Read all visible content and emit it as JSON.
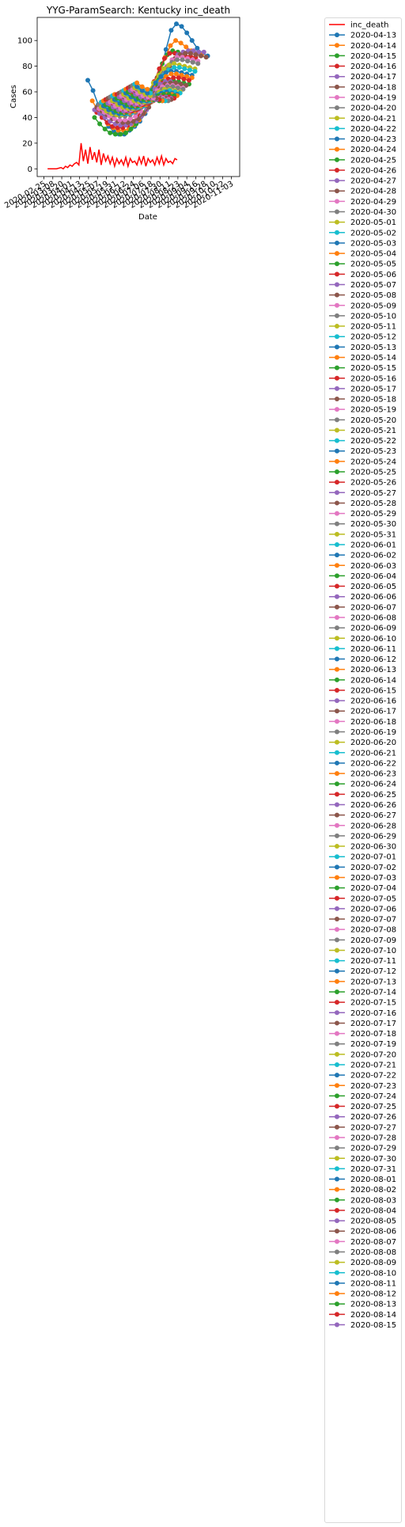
{
  "chart_data": {
    "type": "line",
    "title": "YYG-ParamSearch: Kentucky inc_death",
    "xlabel": "Date",
    "ylabel": "Cases",
    "ylim": [
      -6,
      118
    ],
    "yticks": [
      0,
      20,
      40,
      60,
      80,
      100
    ],
    "xticks": [
      "2020-02-25",
      "2020-03-08",
      "2020-03-20",
      "2020-04-01",
      "2020-04-13",
      "2020-04-25",
      "2020-05-07",
      "2020-05-19",
      "2020-05-31",
      "2020-06-12",
      "2020-06-24",
      "2020-07-06",
      "2020-07-18",
      "2020-07-30",
      "2020-08-11",
      "2020-08-23",
      "2020-09-04",
      "2020-09-16",
      "2020-09-28",
      "2020-10-10",
      "2020-10-22",
      "2020-11-03"
    ],
    "xlim": [
      "2020-02-16",
      "2020-11-14"
    ],
    "grid": false,
    "legend_position": "outside-right",
    "observed": {
      "name": "inc_death",
      "color": "#ff0000",
      "dates": [
        "2020-03-01",
        "2020-03-07",
        "2020-03-13",
        "2020-03-19",
        "2020-03-22",
        "2020-03-25",
        "2020-03-28",
        "2020-03-31",
        "2020-04-03",
        "2020-04-06",
        "2020-04-09",
        "2020-04-12",
        "2020-04-15",
        "2020-04-18",
        "2020-04-21",
        "2020-04-24",
        "2020-04-27",
        "2020-04-30",
        "2020-05-03",
        "2020-05-06",
        "2020-05-09",
        "2020-05-12",
        "2020-05-15",
        "2020-05-18",
        "2020-05-21",
        "2020-05-24",
        "2020-05-27",
        "2020-05-30",
        "2020-06-02",
        "2020-06-05",
        "2020-06-08",
        "2020-06-11",
        "2020-06-14",
        "2020-06-17",
        "2020-06-20",
        "2020-06-23",
        "2020-06-26",
        "2020-06-29",
        "2020-07-02",
        "2020-07-05",
        "2020-07-08",
        "2020-07-11",
        "2020-07-14",
        "2020-07-17",
        "2020-07-20",
        "2020-07-23",
        "2020-07-26",
        "2020-07-29",
        "2020-08-01",
        "2020-08-04",
        "2020-08-07",
        "2020-08-10",
        "2020-08-13",
        "2020-08-16",
        "2020-08-19",
        "2020-08-22"
      ],
      "values": [
        0,
        0,
        0,
        1,
        0,
        2,
        1,
        3,
        2,
        4,
        5,
        3,
        20,
        6,
        15,
        4,
        17,
        7,
        13,
        5,
        15,
        3,
        12,
        6,
        10,
        4,
        9,
        2,
        8,
        4,
        7,
        3,
        9,
        2,
        8,
        5,
        6,
        3,
        9,
        4,
        10,
        2,
        8,
        5,
        7,
        3,
        9,
        4,
        10,
        3,
        8,
        5,
        6,
        4,
        8,
        7
      ]
    },
    "series_colors": [
      "#1f77b4",
      "#ff7f0e",
      "#2ca02c",
      "#d62728",
      "#9467bd",
      "#8c564b",
      "#e377c2",
      "#7f7f7f",
      "#bcbd22",
      "#17becf"
    ],
    "series": [
      {
        "name": "2020-04-13",
        "start": "2020-04-24",
        "values": [
          69,
          61,
          50,
          41,
          33,
          29,
          27,
          27,
          30,
          33,
          37,
          43,
          52,
          62,
          76,
          93,
          108,
          113,
          111,
          106,
          100,
          94,
          90,
          88
        ]
      },
      {
        "name": "2020-04-14",
        "start": "2020-04-30",
        "values": [
          53,
          46,
          40,
          35,
          32,
          30,
          30,
          31,
          34,
          38,
          44,
          52,
          62,
          74,
          87,
          96,
          100,
          98,
          95,
          92,
          90,
          89
        ]
      },
      {
        "name": "2020-04-15",
        "start": "2020-05-03",
        "values": [
          40,
          35,
          31,
          28,
          27,
          27,
          28,
          31,
          35,
          41,
          49,
          59,
          71,
          82,
          89,
          92,
          91,
          88,
          86,
          85
        ]
      },
      {
        "name": "2020-04-16",
        "start": "2020-05-06",
        "values": [
          44,
          40,
          36,
          33,
          32,
          32,
          34,
          37,
          42,
          49,
          58,
          68,
          78,
          86,
          90,
          90,
          89,
          88,
          88,
          87
        ]
      },
      {
        "name": "2020-04-17",
        "start": "2020-05-03",
        "values": [
          46,
          43,
          40,
          37,
          35,
          34,
          34,
          35,
          37,
          41,
          46,
          53,
          61,
          70,
          78,
          85,
          89,
          91,
          92,
          92,
          91,
          91
        ]
      },
      {
        "name": "2020-04-18",
        "start": "2020-05-06",
        "values": [
          48,
          45,
          42,
          39,
          37,
          36,
          36,
          37,
          39,
          43,
          48,
          55,
          63,
          72,
          80,
          86,
          89,
          90,
          90,
          89,
          88,
          87
        ]
      },
      {
        "name": "2020-04-19",
        "start": "2020-05-09",
        "values": [
          47,
          44,
          41,
          39,
          38,
          38,
          39,
          41,
          45,
          50,
          57,
          65,
          73,
          80,
          85,
          87,
          87,
          86,
          85,
          84
        ]
      },
      {
        "name": "2020-04-20",
        "start": "2020-05-09",
        "values": [
          50,
          47,
          44,
          42,
          41,
          41,
          42,
          44,
          48,
          53,
          59,
          66,
          73,
          79,
          83,
          85,
          85,
          84,
          83,
          82
        ]
      },
      {
        "name": "2020-04-21",
        "start": "2020-05-12",
        "values": [
          48,
          45,
          43,
          42,
          42,
          43,
          45,
          49,
          54,
          60,
          67,
          73,
          78,
          81,
          82,
          81,
          80,
          79,
          78
        ]
      },
      {
        "name": "2020-04-22",
        "start": "2020-05-12",
        "values": [
          52,
          49,
          46,
          44,
          43,
          43,
          44,
          47,
          51,
          56,
          62,
          68,
          73,
          77,
          79,
          79,
          78,
          77,
          76
        ]
      },
      {
        "name": "2020-04-23",
        "start": "2020-05-15",
        "values": [
          49,
          46,
          44,
          43,
          43,
          44,
          46,
          50,
          55,
          61,
          67,
          72,
          75,
          76,
          76,
          75,
          74,
          73
        ]
      },
      {
        "name": "2020-04-24",
        "start": "2020-05-15",
        "values": [
          53,
          50,
          47,
          45,
          44,
          44,
          45,
          48,
          52,
          57,
          63,
          68,
          72,
          74,
          74,
          73,
          72,
          71
        ]
      },
      {
        "name": "2020-04-25",
        "start": "2020-05-18",
        "values": [
          50,
          47,
          45,
          44,
          44,
          45,
          47,
          51,
          56,
          61,
          65,
          68,
          69,
          69,
          68,
          67,
          66
        ]
      },
      {
        "name": "2020-04-26",
        "start": "2020-05-18",
        "values": [
          54,
          51,
          48,
          46,
          45,
          45,
          46,
          49,
          53,
          58,
          63,
          67,
          70,
          71,
          71,
          70,
          69
        ]
      },
      {
        "name": "2020-04-27",
        "start": "2020-05-21",
        "values": [
          51,
          48,
          46,
          45,
          45,
          46,
          48,
          52,
          57,
          62,
          66,
          68,
          68,
          67,
          66,
          65
        ]
      },
      {
        "name": "2020-04-28",
        "start": "2020-05-21",
        "values": [
          55,
          52,
          49,
          47,
          46,
          46,
          47,
          50,
          54,
          59,
          63,
          66,
          67,
          67,
          66,
          65
        ]
      },
      {
        "name": "2020-04-29",
        "start": "2020-05-24",
        "values": [
          52,
          49,
          47,
          46,
          46,
          47,
          49,
          53,
          57,
          61,
          64,
          65,
          65,
          64,
          63
        ]
      },
      {
        "name": "2020-04-30",
        "start": "2020-05-24",
        "values": [
          56,
          53,
          50,
          48,
          47,
          47,
          48,
          51,
          55,
          59,
          62,
          64,
          64,
          63,
          62
        ]
      },
      {
        "name": "2020-05-01",
        "start": "2020-05-27",
        "values": [
          53,
          50,
          48,
          47,
          47,
          48,
          50,
          53,
          57,
          60,
          62,
          62,
          61,
          60
        ]
      },
      {
        "name": "2020-05-02",
        "start": "2020-05-27",
        "values": [
          57,
          54,
          51,
          49,
          48,
          48,
          49,
          52,
          55,
          58,
          60,
          61,
          60,
          59
        ]
      },
      {
        "name": "2020-05-03",
        "start": "2020-05-30",
        "values": [
          54,
          51,
          49,
          48,
          48,
          49,
          51,
          54,
          57,
          59,
          60,
          59,
          58
        ]
      },
      {
        "name": "2020-05-04",
        "start": "2020-05-30",
        "values": [
          58,
          55,
          52,
          50,
          49,
          49,
          50,
          52,
          55,
          57,
          58,
          58,
          57
        ]
      },
      {
        "name": "2020-05-05",
        "start": "2020-06-02",
        "values": [
          55,
          52,
          50,
          49,
          49,
          50,
          52,
          55,
          57,
          58,
          58,
          57
        ]
      },
      {
        "name": "2020-05-06",
        "start": "2020-06-02",
        "values": [
          58,
          55,
          53,
          51,
          50,
          50,
          51,
          53,
          55,
          56,
          56,
          55
        ]
      },
      {
        "name": "2020-05-07",
        "start": "2020-06-05",
        "values": [
          56,
          53,
          51,
          50,
          50,
          51,
          53,
          55,
          56,
          56,
          55
        ]
      },
      {
        "name": "2020-05-08",
        "start": "2020-06-05",
        "values": [
          59,
          56,
          54,
          52,
          51,
          51,
          52,
          54,
          55,
          55,
          54
        ]
      },
      {
        "name": "2020-05-09",
        "start": "2020-06-08",
        "values": [
          57,
          54,
          52,
          51,
          51,
          52,
          54,
          55,
          55,
          54
        ]
      },
      {
        "name": "2020-05-10",
        "start": "2020-06-08",
        "values": [
          60,
          57,
          55,
          53,
          52,
          52,
          53,
          54,
          54,
          53
        ]
      },
      {
        "name": "2020-05-11",
        "start": "2020-06-11",
        "values": [
          58,
          55,
          53,
          52,
          52,
          53,
          54,
          54,
          53
        ]
      },
      {
        "name": "2020-05-12",
        "start": "2020-06-11",
        "values": [
          61,
          58,
          56,
          54,
          53,
          53,
          54,
          54,
          53
        ]
      },
      {
        "name": "2020-05-13",
        "start": "2020-06-14",
        "values": [
          59,
          56,
          54,
          53,
          53,
          54,
          54,
          53
        ]
      },
      {
        "name": "2020-05-14",
        "start": "2020-06-14",
        "values": [
          62,
          59,
          57,
          55,
          54,
          54,
          54,
          53
        ]
      },
      {
        "name": "2020-05-15",
        "start": "2020-06-17",
        "values": [
          60,
          57,
          55,
          54,
          54,
          54,
          53
        ]
      },
      {
        "name": "2020-05-16",
        "start": "2020-06-17",
        "values": [
          63,
          60,
          58,
          56,
          55,
          55,
          54
        ]
      },
      {
        "name": "2020-05-17",
        "start": "2020-06-20",
        "values": [
          61,
          58,
          56,
          55,
          55,
          54
        ]
      },
      {
        "name": "2020-05-18",
        "start": "2020-06-20",
        "values": [
          64,
          61,
          59,
          57,
          56,
          55
        ]
      },
      {
        "name": "2020-05-19",
        "start": "2020-06-23",
        "values": [
          62,
          59,
          57,
          56,
          55
        ]
      },
      {
        "name": "2020-05-20",
        "start": "2020-06-23",
        "values": [
          65,
          62,
          60,
          58,
          57
        ]
      },
      {
        "name": "2020-05-21",
        "start": "2020-06-26",
        "values": [
          63,
          60,
          58,
          57
        ]
      },
      {
        "name": "2020-05-22",
        "start": "2020-06-26",
        "values": [
          66,
          63,
          61,
          59
        ]
      },
      {
        "name": "2020-05-23",
        "start": "2020-06-29",
        "values": [
          64,
          61,
          59
        ]
      },
      {
        "name": "2020-05-24",
        "start": "2020-06-29",
        "values": [
          67,
          64,
          62
        ]
      },
      {
        "name": "2020-05-25"
      },
      {
        "name": "2020-05-26"
      },
      {
        "name": "2020-05-27"
      },
      {
        "name": "2020-05-28"
      },
      {
        "name": "2020-05-29"
      },
      {
        "name": "2020-05-30"
      },
      {
        "name": "2020-05-31"
      },
      {
        "name": "2020-06-01"
      },
      {
        "name": "2020-06-02"
      },
      {
        "name": "2020-06-03"
      },
      {
        "name": "2020-06-04"
      },
      {
        "name": "2020-06-05"
      },
      {
        "name": "2020-06-06"
      },
      {
        "name": "2020-06-07"
      },
      {
        "name": "2020-06-08"
      },
      {
        "name": "2020-06-09"
      },
      {
        "name": "2020-06-10"
      },
      {
        "name": "2020-06-11"
      },
      {
        "name": "2020-06-12"
      },
      {
        "name": "2020-06-13"
      },
      {
        "name": "2020-06-14"
      },
      {
        "name": "2020-06-15"
      },
      {
        "name": "2020-06-16"
      },
      {
        "name": "2020-06-17"
      },
      {
        "name": "2020-06-18"
      },
      {
        "name": "2020-06-19"
      },
      {
        "name": "2020-06-20"
      },
      {
        "name": "2020-06-21"
      },
      {
        "name": "2020-06-22"
      },
      {
        "name": "2020-06-23"
      },
      {
        "name": "2020-06-24"
      },
      {
        "name": "2020-06-25"
      },
      {
        "name": "2020-06-26"
      },
      {
        "name": "2020-06-27"
      },
      {
        "name": "2020-06-28"
      },
      {
        "name": "2020-06-29"
      },
      {
        "name": "2020-06-30"
      },
      {
        "name": "2020-07-01"
      },
      {
        "name": "2020-07-02"
      },
      {
        "name": "2020-07-03"
      },
      {
        "name": "2020-07-04"
      },
      {
        "name": "2020-07-05"
      },
      {
        "name": "2020-07-06"
      },
      {
        "name": "2020-07-07"
      },
      {
        "name": "2020-07-08"
      },
      {
        "name": "2020-07-09"
      },
      {
        "name": "2020-07-10"
      },
      {
        "name": "2020-07-11"
      },
      {
        "name": "2020-07-12"
      },
      {
        "name": "2020-07-13"
      },
      {
        "name": "2020-07-14"
      },
      {
        "name": "2020-07-15"
      },
      {
        "name": "2020-07-16"
      },
      {
        "name": "2020-07-17"
      },
      {
        "name": "2020-07-18"
      },
      {
        "name": "2020-07-19"
      },
      {
        "name": "2020-07-20"
      },
      {
        "name": "2020-07-21"
      },
      {
        "name": "2020-07-22"
      },
      {
        "name": "2020-07-23"
      },
      {
        "name": "2020-07-24"
      },
      {
        "name": "2020-07-25"
      },
      {
        "name": "2020-07-26"
      },
      {
        "name": "2020-07-27"
      },
      {
        "name": "2020-07-28"
      },
      {
        "name": "2020-07-29"
      },
      {
        "name": "2020-07-30"
      },
      {
        "name": "2020-07-31"
      },
      {
        "name": "2020-08-01"
      },
      {
        "name": "2020-08-02"
      },
      {
        "name": "2020-08-03"
      },
      {
        "name": "2020-08-04"
      },
      {
        "name": "2020-08-05"
      },
      {
        "name": "2020-08-06"
      },
      {
        "name": "2020-08-07"
      },
      {
        "name": "2020-08-08"
      },
      {
        "name": "2020-08-09"
      },
      {
        "name": "2020-08-10"
      },
      {
        "name": "2020-08-11"
      },
      {
        "name": "2020-08-12"
      },
      {
        "name": "2020-08-13"
      },
      {
        "name": "2020-08-14"
      },
      {
        "name": "2020-08-15"
      }
    ]
  }
}
